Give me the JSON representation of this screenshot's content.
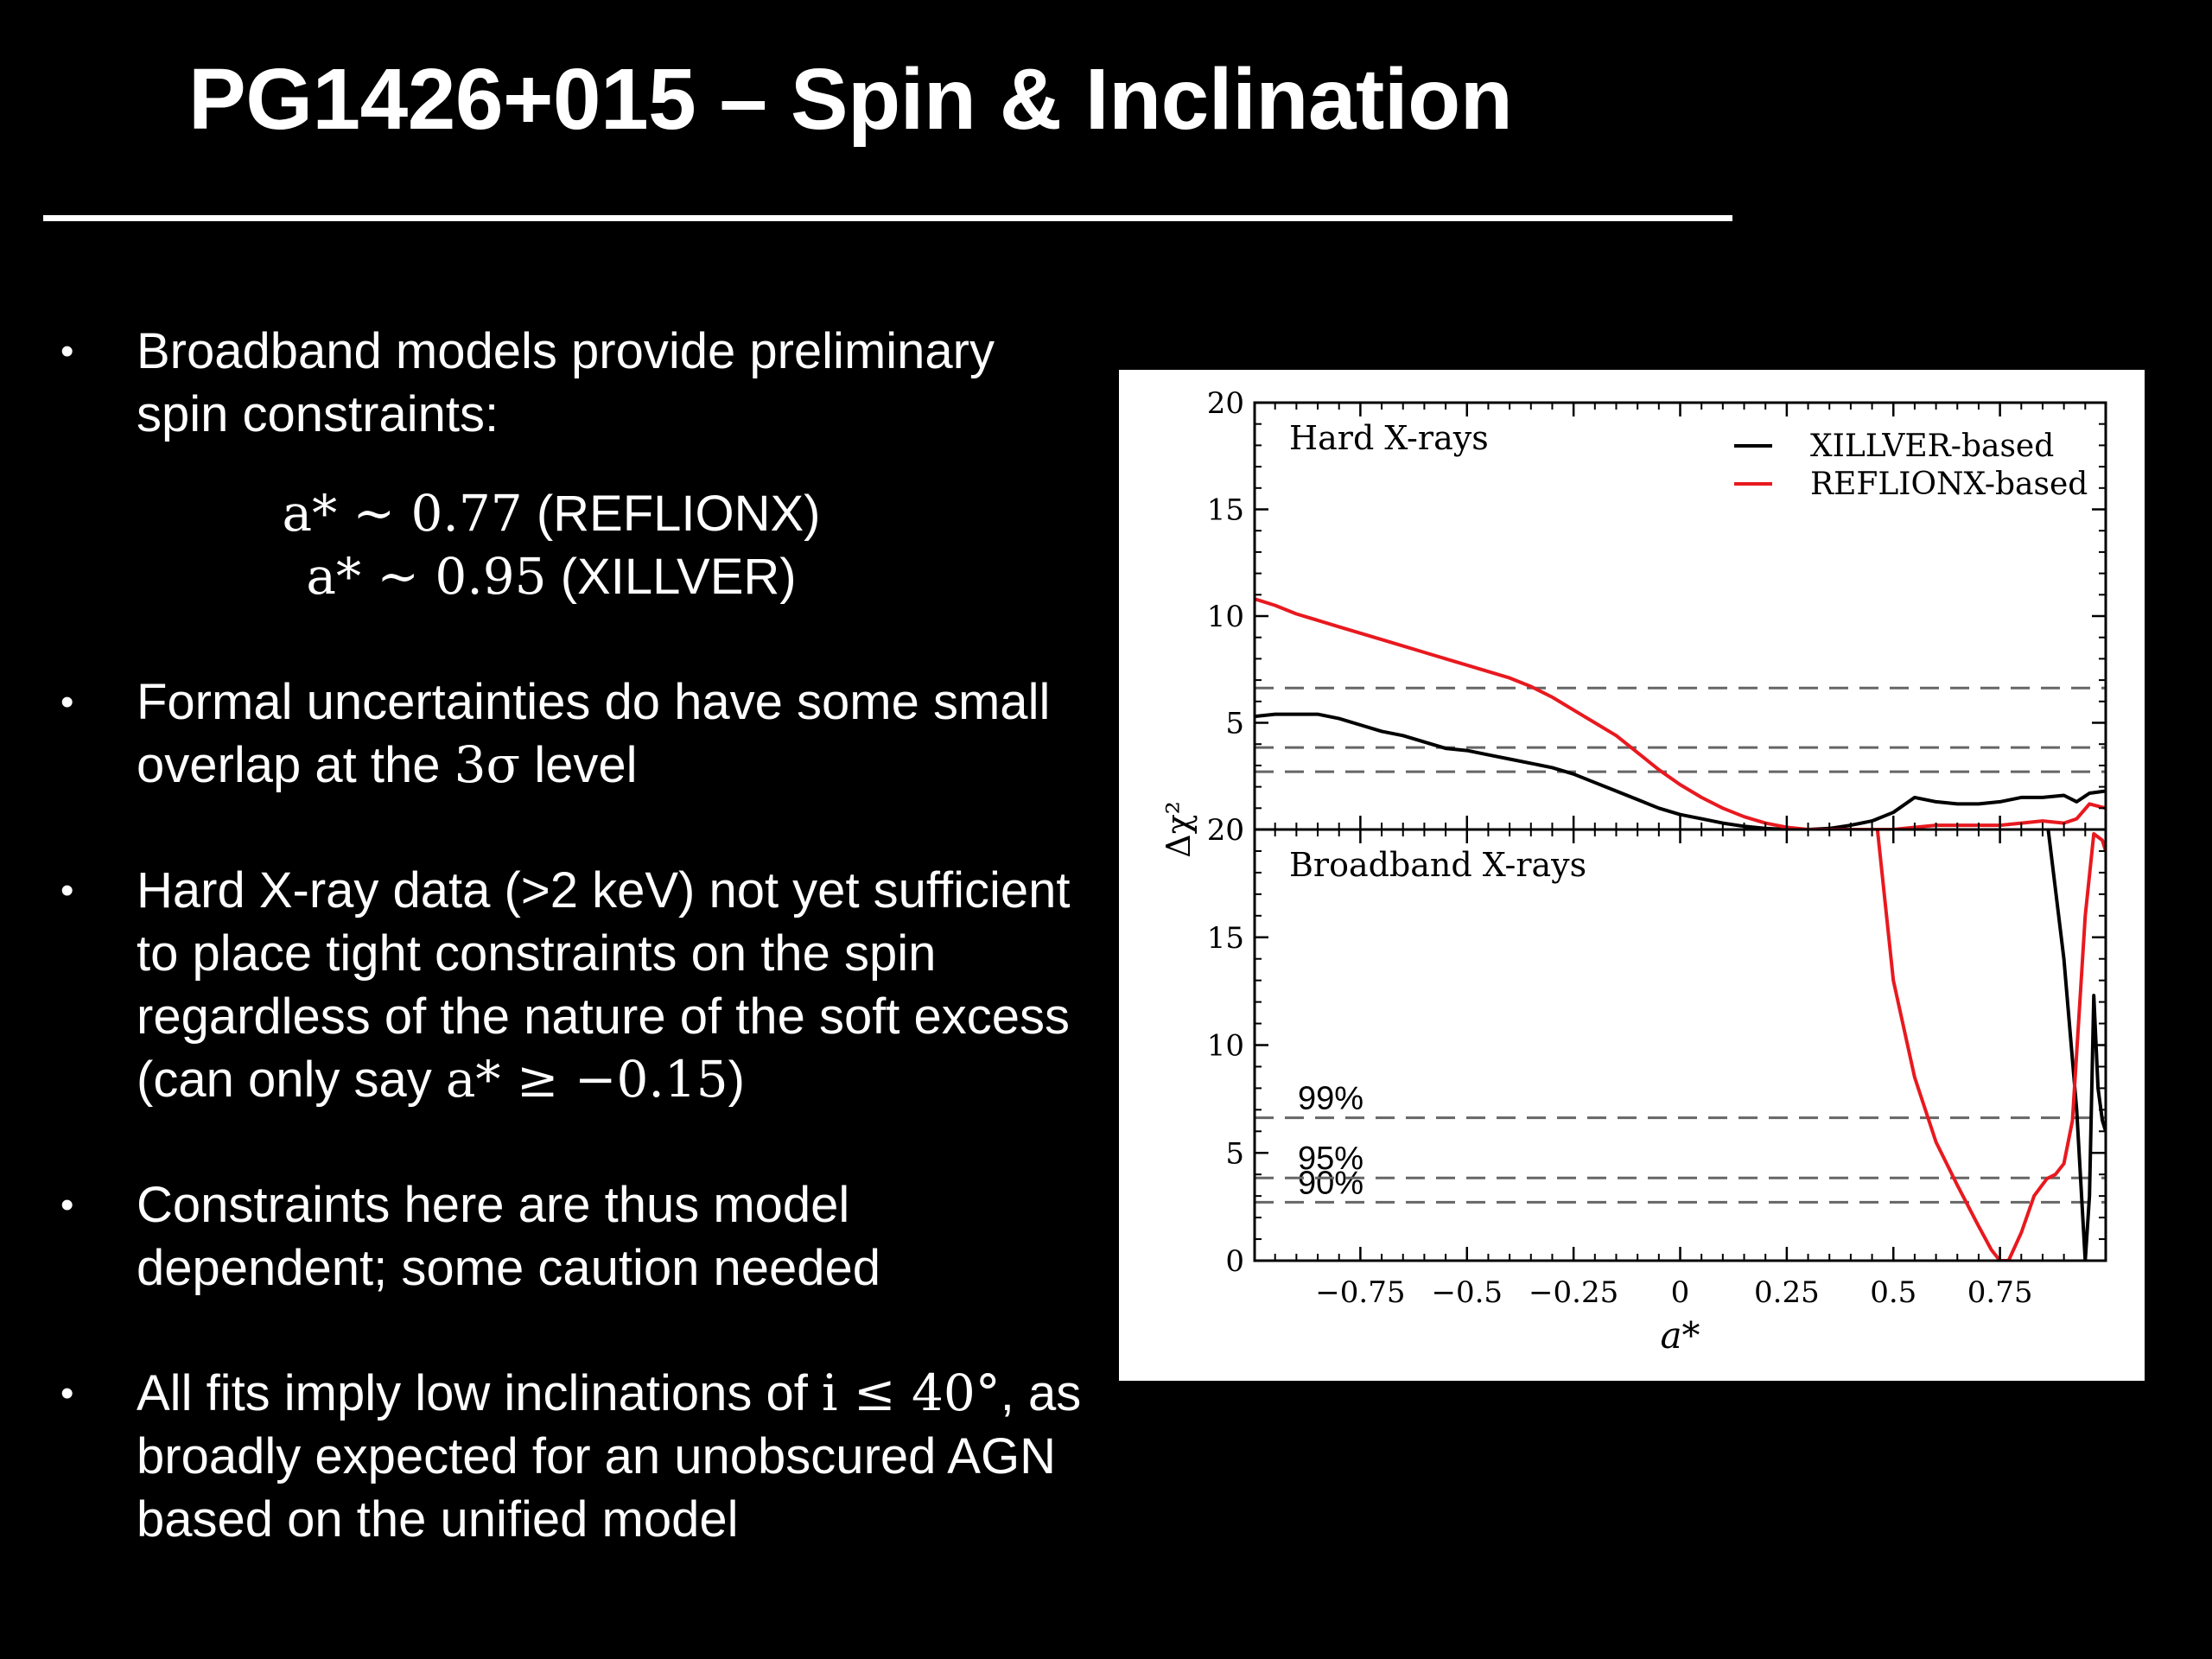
{
  "slide": {
    "title": "PG1426+015 – Spin & Inclination",
    "bullet_symbol": "•",
    "bullets": [
      {
        "text": "Broadband models provide preliminary spin constraints:",
        "equations": [
          {
            "math": "a* ~ 0.77",
            "label": "(REFLIONX)"
          },
          {
            "math": "a* ~ 0.95",
            "label": "(XILLVER)"
          }
        ]
      },
      {
        "text_before": "Formal uncertainties do have some small overlap at the",
        "math": "3σ",
        "text_after": "level"
      },
      {
        "text_before": "Hard X-ray data (>2 keV) not yet sufficient to place tight constraints on the spin regardless of the nature of the soft excess (can only say",
        "math": "a* ≥ −0.15",
        "text_after": ")"
      },
      {
        "text": "Constraints here are thus model dependent; some caution needed"
      },
      {
        "text_before": "All fits imply low inclinations of",
        "math": "i ≤ 40°",
        "text_after": ", as broadly expected for an unobscured AGN based on the unified model"
      }
    ]
  },
  "chart_data": [
    {
      "type": "line",
      "panel": "top",
      "panel_label": "Hard X-rays",
      "xlabel": "a*",
      "ylabel": "Δχ²",
      "xlim": [
        -0.998,
        0.998
      ],
      "ylim": [
        0,
        20
      ],
      "yticks": [
        0,
        5,
        10,
        15,
        20
      ],
      "xticks": [
        -0.75,
        -0.5,
        -0.25,
        0,
        0.25,
        0.5,
        0.75
      ],
      "xtick_labels": [
        "−0.75",
        "−0.5",
        "−0.25",
        "0",
        "0.25",
        "0.5",
        "0.75"
      ],
      "legend_position": "top-right",
      "reference_lines": [
        2.71,
        3.84,
        6.63
      ],
      "series": [
        {
          "name": "XILLVER-based",
          "color": "#000000",
          "x": [
            -0.998,
            -0.95,
            -0.9,
            -0.85,
            -0.8,
            -0.75,
            -0.7,
            -0.65,
            -0.6,
            -0.55,
            -0.5,
            -0.45,
            -0.4,
            -0.35,
            -0.3,
            -0.25,
            -0.2,
            -0.15,
            -0.1,
            -0.05,
            0,
            0.05,
            0.1,
            0.15,
            0.2,
            0.25,
            0.3,
            0.35,
            0.4,
            0.45,
            0.5,
            0.55,
            0.6,
            0.65,
            0.7,
            0.75,
            0.8,
            0.85,
            0.9,
            0.93,
            0.96,
            0.998
          ],
          "y": [
            5.3,
            5.4,
            5.4,
            5.4,
            5.2,
            4.9,
            4.6,
            4.4,
            4.1,
            3.8,
            3.7,
            3.5,
            3.3,
            3.1,
            2.9,
            2.6,
            2.2,
            1.8,
            1.4,
            1.0,
            0.7,
            0.5,
            0.3,
            0.15,
            0.05,
            0.0,
            0.0,
            0.05,
            0.2,
            0.4,
            0.8,
            1.5,
            1.3,
            1.2,
            1.2,
            1.3,
            1.5,
            1.5,
            1.6,
            1.3,
            1.7,
            1.8
          ]
        },
        {
          "name": "REFLIONX-based",
          "color": "#e8191f",
          "x": [
            -0.998,
            -0.95,
            -0.9,
            -0.85,
            -0.8,
            -0.75,
            -0.7,
            -0.65,
            -0.6,
            -0.55,
            -0.5,
            -0.45,
            -0.4,
            -0.35,
            -0.3,
            -0.25,
            -0.2,
            -0.15,
            -0.1,
            -0.05,
            0,
            0.05,
            0.1,
            0.15,
            0.2,
            0.25,
            0.3,
            0.35,
            0.4,
            0.45,
            0.5,
            0.55,
            0.6,
            0.65,
            0.7,
            0.75,
            0.8,
            0.85,
            0.9,
            0.93,
            0.96,
            0.998
          ],
          "y": [
            10.8,
            10.5,
            10.1,
            9.8,
            9.5,
            9.2,
            8.9,
            8.6,
            8.3,
            8.0,
            7.7,
            7.4,
            7.1,
            6.7,
            6.2,
            5.6,
            5.0,
            4.4,
            3.6,
            2.8,
            2.1,
            1.5,
            1.0,
            0.6,
            0.3,
            0.1,
            0.0,
            0.0,
            0.0,
            0.0,
            0.0,
            0.1,
            0.2,
            0.2,
            0.2,
            0.2,
            0.3,
            0.4,
            0.3,
            0.5,
            1.2,
            1.0
          ]
        }
      ]
    },
    {
      "type": "line",
      "panel": "bottom",
      "panel_label": "Broadband X-rays",
      "xlabel": "a*",
      "ylabel": "Δχ²",
      "xlim": [
        -0.998,
        0.998
      ],
      "ylim": [
        0,
        20
      ],
      "yticks": [
        0,
        5,
        10,
        15,
        20
      ],
      "xticks": [
        -0.75,
        -0.5,
        -0.25,
        0,
        0.25,
        0.5,
        0.75
      ],
      "xtick_labels": [
        "−0.75",
        "−0.5",
        "−0.25",
        "0",
        "0.25",
        "0.5",
        "0.75"
      ],
      "reference_lines": [
        {
          "value": 2.71,
          "label": "90%"
        },
        {
          "value": 3.84,
          "label": "95%"
        },
        {
          "value": 6.63,
          "label": "99%"
        }
      ],
      "series": [
        {
          "name": "XILLVER-based",
          "color": "#000000",
          "x": [
            0.86,
            0.9,
            0.93,
            0.95,
            0.96,
            0.97,
            0.98,
            0.99,
            0.998
          ],
          "y": [
            20.5,
            14,
            7,
            0.0,
            3,
            12.3,
            8,
            6.5,
            6
          ]
        },
        {
          "name": "REFLIONX-based",
          "color": "#e8191f",
          "x": [
            0.46,
            0.5,
            0.55,
            0.6,
            0.65,
            0.7,
            0.73,
            0.75,
            0.77,
            0.8,
            0.83,
            0.86,
            0.88,
            0.9,
            0.92,
            0.95,
            0.97,
            0.99,
            0.998
          ],
          "y": [
            20.5,
            13,
            8.5,
            5.5,
            3.5,
            1.6,
            0.5,
            0.0,
            0.0,
            1.3,
            3.0,
            3.8,
            4.0,
            4.5,
            6.5,
            16,
            19.8,
            19.5,
            19
          ]
        }
      ]
    }
  ]
}
